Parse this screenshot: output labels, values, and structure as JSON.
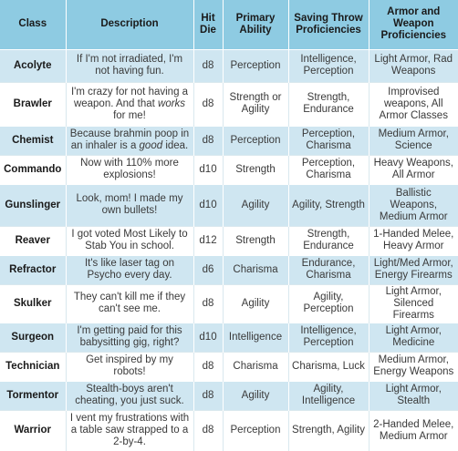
{
  "headers": {
    "class": "Class",
    "description": "Description",
    "hit_die": "Hit Die",
    "primary_ability": "Primary Ability",
    "saving_throws": "Saving Throw Proficiencies",
    "armor_weapon": "Armor and Weapon Proficiencies"
  },
  "rows": [
    {
      "class": "Acolyte",
      "description": "If I'm not irradiated, I'm not having fun.",
      "hit_die": "d8",
      "ability": "Perception",
      "saves": "Intelligence, Perception",
      "armor": "Light Armor, Rad Weapons"
    },
    {
      "class": "Brawler",
      "description_pre": "I'm crazy for not having a weapon. And that ",
      "description_em": "works",
      "description_post": " for me!",
      "hit_die": "d8",
      "ability": "Strength or Agility",
      "saves": "Strength, Endurance",
      "armor": "Improvised weapons, All Armor Classes"
    },
    {
      "class": "Chemist",
      "description_pre": "Because brahmin poop in an inhaler is a ",
      "description_em": "good",
      "description_post": " idea.",
      "hit_die": "d8",
      "ability": "Perception",
      "saves": "Perception, Charisma",
      "armor": "Medium Armor, Science"
    },
    {
      "class": "Commando",
      "description": "Now with 110% more explosions!",
      "hit_die": "d10",
      "ability": "Strength",
      "saves": "Perception, Charisma",
      "armor": "Heavy Weapons, All Armor"
    },
    {
      "class": "Gunslinger",
      "description": "Look, mom! I made my own bullets!",
      "hit_die": "d10",
      "ability": "Agility",
      "saves": "Agility, Strength",
      "armor": "Ballistic Weapons, Medium Armor"
    },
    {
      "class": "Reaver",
      "description": "I got voted Most Likely to Stab You in school.",
      "hit_die": "d12",
      "ability": "Strength",
      "saves": "Strength, Endurance",
      "armor": "1-Handed Melee, Heavy Armor"
    },
    {
      "class": "Refractor",
      "description": "It's like laser tag on Psycho every day.",
      "hit_die": "d6",
      "ability": "Charisma",
      "saves": "Endurance, Charisma",
      "armor": "Light/Med Armor, Energy Firearms"
    },
    {
      "class": "Skulker",
      "description": "They can't kill me if they can't see me.",
      "hit_die": "d8",
      "ability": "Agility",
      "saves": "Agility, Perception",
      "armor": "Light Armor, Silenced Firearms"
    },
    {
      "class": "Surgeon",
      "description": "I'm getting paid for this babysitting gig, right?",
      "hit_die": "d10",
      "ability": "Intelligence",
      "saves": "Intelligence, Perception",
      "armor": "Light Armor, Medicine"
    },
    {
      "class": "Technician",
      "description": "Get inspired by my robots!",
      "hit_die": "d8",
      "ability": "Charisma",
      "saves": "Charisma, Luck",
      "armor": "Medium Armor, Energy Weapons"
    },
    {
      "class": "Tormentor",
      "description": "Stealth-boys aren't cheating, you just suck.",
      "hit_die": "d8",
      "ability": "Agility",
      "saves": "Agility, Intelligence",
      "armor": "Light Armor, Stealth"
    },
    {
      "class": "Warrior",
      "description": "I vent my frustrations with a table saw strapped to a 2-by-4.",
      "hit_die": "d8",
      "ability": "Perception",
      "saves": "Strength, Agility",
      "armor": "2-Handed Melee, Medium Armor"
    }
  ]
}
